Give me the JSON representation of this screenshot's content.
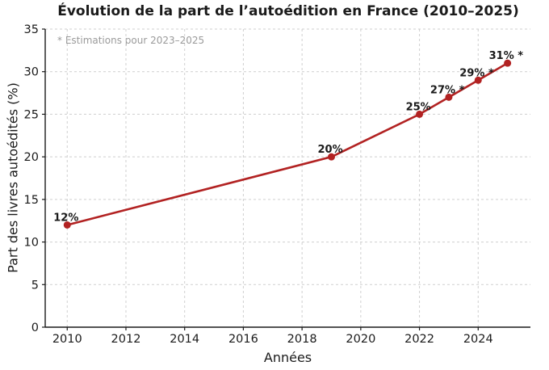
{
  "chart_data": {
    "type": "line",
    "title": "Évolution de la part de l’autoédition en France (2010–2025)",
    "annotation": "* Estimations pour 2023–2025",
    "xlabel": "Années",
    "ylabel": "Part des livres autoédités (%)",
    "x": [
      2010,
      2019,
      2022,
      2023,
      2024,
      2025
    ],
    "values": [
      12,
      20,
      25,
      27,
      29,
      31
    ],
    "point_labels": [
      "12%",
      "20%",
      "25%",
      "27% *",
      "29% *",
      "31% *"
    ],
    "xticks": [
      2010,
      2012,
      2014,
      2016,
      2018,
      2020,
      2022,
      2024
    ],
    "yticks": [
      0,
      5,
      10,
      15,
      20,
      25,
      30,
      35
    ],
    "xlim": [
      2009.25,
      2025.78
    ],
    "ylim": [
      0,
      35
    ],
    "grid": true,
    "legend": "none",
    "line_color": "#b22222",
    "marker_color": "#b22222",
    "grid_color": "#cfcfcf",
    "spine_color": "#1a1a1a",
    "text_color": "#1a1a1a",
    "annotation_color": "#9a9a9a"
  }
}
